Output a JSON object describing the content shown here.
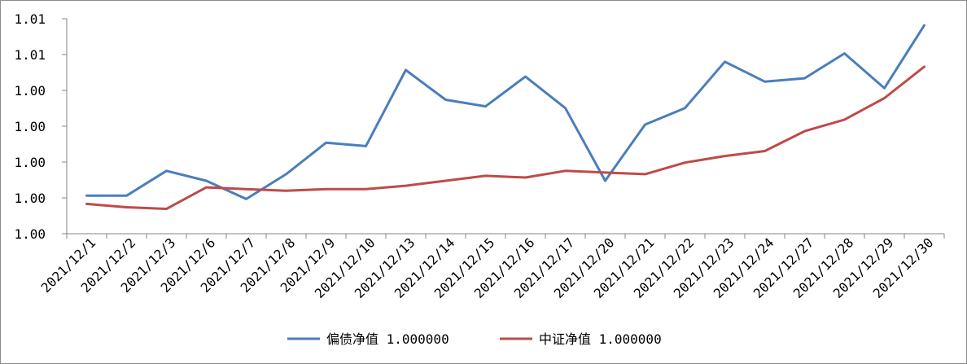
{
  "chart_data": {
    "type": "line",
    "title": "",
    "xlabel": "",
    "ylabel": "",
    "categories": [
      "2021/12/1",
      "2021/12/2",
      "2021/12/3",
      "2021/12/6",
      "2021/12/7",
      "2021/12/8",
      "2021/12/9",
      "2021/12/10",
      "2021/12/13",
      "2021/12/14",
      "2021/12/15",
      "2021/12/16",
      "2021/12/17",
      "2021/12/20",
      "2021/12/21",
      "2021/12/22",
      "2021/12/23",
      "2021/12/24",
      "2021/12/27",
      "2021/12/28",
      "2021/12/29",
      "2021/12/30"
    ],
    "y_tick_labels": [
      "1.00",
      "1.00",
      "1.00",
      "1.00",
      "1.00",
      "1.01",
      "1.01"
    ],
    "ylim": [
      0.998,
      1.011
    ],
    "grid": false,
    "legend_position": "bottom",
    "series": [
      {
        "name": "偏债净值 1.000000",
        "color": "#4a7ebb",
        "values": [
          1.0003,
          1.0003,
          1.0018,
          1.0012,
          1.0001,
          1.0016,
          1.0035,
          1.0033,
          1.0079,
          1.0061,
          1.0057,
          1.0075,
          1.0056,
          1.0012,
          1.0046,
          1.0056,
          1.0084,
          1.0072,
          1.0074,
          1.0089,
          1.0068,
          1.0106
        ]
      },
      {
        "name": "中证净值 1.000000",
        "color": "#be4b48",
        "values": [
          0.9998,
          0.9996,
          0.9995,
          1.0008,
          1.0007,
          1.0006,
          1.0007,
          1.0007,
          1.0009,
          1.0012,
          1.0015,
          1.0014,
          1.0018,
          1.0017,
          1.0016,
          1.0023,
          1.0027,
          1.003,
          1.0042,
          1.0049,
          1.0062,
          1.0081
        ]
      }
    ]
  }
}
